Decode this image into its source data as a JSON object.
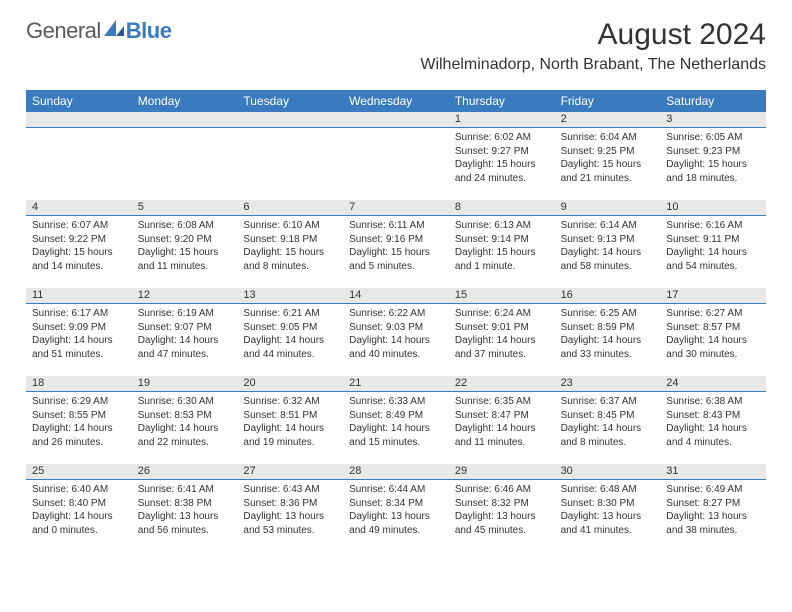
{
  "logo": {
    "part1": "General",
    "part2": "Blue"
  },
  "title": "August 2024",
  "location": "Wilhelminadorp, North Brabant, The Netherlands",
  "colors": {
    "header_bg": "#3a7bbf",
    "daynum_bg": "#e8e8e8",
    "divider": "#3a7bbf",
    "text": "#333333",
    "logo_gray": "#5a5a5a",
    "logo_blue": "#3a7bbf"
  },
  "day_labels": [
    "Sunday",
    "Monday",
    "Tuesday",
    "Wednesday",
    "Thursday",
    "Friday",
    "Saturday"
  ],
  "weeks": [
    [
      {
        "n": "",
        "sr": "",
        "ss": "",
        "dl": ""
      },
      {
        "n": "",
        "sr": "",
        "ss": "",
        "dl": ""
      },
      {
        "n": "",
        "sr": "",
        "ss": "",
        "dl": ""
      },
      {
        "n": "",
        "sr": "",
        "ss": "",
        "dl": ""
      },
      {
        "n": "1",
        "sr": "Sunrise: 6:02 AM",
        "ss": "Sunset: 9:27 PM",
        "dl": "Daylight: 15 hours and 24 minutes."
      },
      {
        "n": "2",
        "sr": "Sunrise: 6:04 AM",
        "ss": "Sunset: 9:25 PM",
        "dl": "Daylight: 15 hours and 21 minutes."
      },
      {
        "n": "3",
        "sr": "Sunrise: 6:05 AM",
        "ss": "Sunset: 9:23 PM",
        "dl": "Daylight: 15 hours and 18 minutes."
      }
    ],
    [
      {
        "n": "4",
        "sr": "Sunrise: 6:07 AM",
        "ss": "Sunset: 9:22 PM",
        "dl": "Daylight: 15 hours and 14 minutes."
      },
      {
        "n": "5",
        "sr": "Sunrise: 6:08 AM",
        "ss": "Sunset: 9:20 PM",
        "dl": "Daylight: 15 hours and 11 minutes."
      },
      {
        "n": "6",
        "sr": "Sunrise: 6:10 AM",
        "ss": "Sunset: 9:18 PM",
        "dl": "Daylight: 15 hours and 8 minutes."
      },
      {
        "n": "7",
        "sr": "Sunrise: 6:11 AM",
        "ss": "Sunset: 9:16 PM",
        "dl": "Daylight: 15 hours and 5 minutes."
      },
      {
        "n": "8",
        "sr": "Sunrise: 6:13 AM",
        "ss": "Sunset: 9:14 PM",
        "dl": "Daylight: 15 hours and 1 minute."
      },
      {
        "n": "9",
        "sr": "Sunrise: 6:14 AM",
        "ss": "Sunset: 9:13 PM",
        "dl": "Daylight: 14 hours and 58 minutes."
      },
      {
        "n": "10",
        "sr": "Sunrise: 6:16 AM",
        "ss": "Sunset: 9:11 PM",
        "dl": "Daylight: 14 hours and 54 minutes."
      }
    ],
    [
      {
        "n": "11",
        "sr": "Sunrise: 6:17 AM",
        "ss": "Sunset: 9:09 PM",
        "dl": "Daylight: 14 hours and 51 minutes."
      },
      {
        "n": "12",
        "sr": "Sunrise: 6:19 AM",
        "ss": "Sunset: 9:07 PM",
        "dl": "Daylight: 14 hours and 47 minutes."
      },
      {
        "n": "13",
        "sr": "Sunrise: 6:21 AM",
        "ss": "Sunset: 9:05 PM",
        "dl": "Daylight: 14 hours and 44 minutes."
      },
      {
        "n": "14",
        "sr": "Sunrise: 6:22 AM",
        "ss": "Sunset: 9:03 PM",
        "dl": "Daylight: 14 hours and 40 minutes."
      },
      {
        "n": "15",
        "sr": "Sunrise: 6:24 AM",
        "ss": "Sunset: 9:01 PM",
        "dl": "Daylight: 14 hours and 37 minutes."
      },
      {
        "n": "16",
        "sr": "Sunrise: 6:25 AM",
        "ss": "Sunset: 8:59 PM",
        "dl": "Daylight: 14 hours and 33 minutes."
      },
      {
        "n": "17",
        "sr": "Sunrise: 6:27 AM",
        "ss": "Sunset: 8:57 PM",
        "dl": "Daylight: 14 hours and 30 minutes."
      }
    ],
    [
      {
        "n": "18",
        "sr": "Sunrise: 6:29 AM",
        "ss": "Sunset: 8:55 PM",
        "dl": "Daylight: 14 hours and 26 minutes."
      },
      {
        "n": "19",
        "sr": "Sunrise: 6:30 AM",
        "ss": "Sunset: 8:53 PM",
        "dl": "Daylight: 14 hours and 22 minutes."
      },
      {
        "n": "20",
        "sr": "Sunrise: 6:32 AM",
        "ss": "Sunset: 8:51 PM",
        "dl": "Daylight: 14 hours and 19 minutes."
      },
      {
        "n": "21",
        "sr": "Sunrise: 6:33 AM",
        "ss": "Sunset: 8:49 PM",
        "dl": "Daylight: 14 hours and 15 minutes."
      },
      {
        "n": "22",
        "sr": "Sunrise: 6:35 AM",
        "ss": "Sunset: 8:47 PM",
        "dl": "Daylight: 14 hours and 11 minutes."
      },
      {
        "n": "23",
        "sr": "Sunrise: 6:37 AM",
        "ss": "Sunset: 8:45 PM",
        "dl": "Daylight: 14 hours and 8 minutes."
      },
      {
        "n": "24",
        "sr": "Sunrise: 6:38 AM",
        "ss": "Sunset: 8:43 PM",
        "dl": "Daylight: 14 hours and 4 minutes."
      }
    ],
    [
      {
        "n": "25",
        "sr": "Sunrise: 6:40 AM",
        "ss": "Sunset: 8:40 PM",
        "dl": "Daylight: 14 hours and 0 minutes."
      },
      {
        "n": "26",
        "sr": "Sunrise: 6:41 AM",
        "ss": "Sunset: 8:38 PM",
        "dl": "Daylight: 13 hours and 56 minutes."
      },
      {
        "n": "27",
        "sr": "Sunrise: 6:43 AM",
        "ss": "Sunset: 8:36 PM",
        "dl": "Daylight: 13 hours and 53 minutes."
      },
      {
        "n": "28",
        "sr": "Sunrise: 6:44 AM",
        "ss": "Sunset: 8:34 PM",
        "dl": "Daylight: 13 hours and 49 minutes."
      },
      {
        "n": "29",
        "sr": "Sunrise: 6:46 AM",
        "ss": "Sunset: 8:32 PM",
        "dl": "Daylight: 13 hours and 45 minutes."
      },
      {
        "n": "30",
        "sr": "Sunrise: 6:48 AM",
        "ss": "Sunset: 8:30 PM",
        "dl": "Daylight: 13 hours and 41 minutes."
      },
      {
        "n": "31",
        "sr": "Sunrise: 6:49 AM",
        "ss": "Sunset: 8:27 PM",
        "dl": "Daylight: 13 hours and 38 minutes."
      }
    ]
  ]
}
